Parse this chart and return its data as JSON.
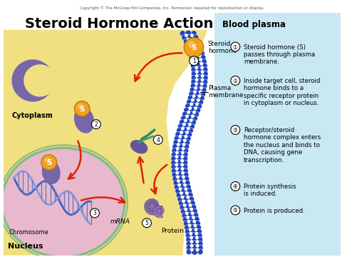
{
  "title": "Steroid Hormone Action",
  "copyright": "Copyright © The McGraw-Hill Companies, Inc. Permission required for reproduction or display.",
  "bg_color": "#FFFFFF",
  "cytoplasm_color": "#F0E080",
  "nucleus_color": "#E8B8CC",
  "blood_plasma_color": "#C8E8F4",
  "nucleus_border_color": "#88BB88",
  "membrane_blue": "#2244BB",
  "receptor_color": "#7766AA",
  "steroid_orange": "#F0A020",
  "steroid_label": "S",
  "arrow_color": "#DD2200",
  "steps": [
    "Steroid hormone (S)\npasses through plasma\nmembrane.",
    "Inside target cell, steroid\nhormone binds to a\nspecific receptor protein\nin cytoplasm or nucleus.",
    "Receptor/steroid\nhormone complex enters\nthe nucleus and binds to\nDNA, causing gene\ntranscription.",
    "Protein synthesis\nis induced.",
    "Protein is produced."
  ],
  "step_numbers": [
    "①",
    "②",
    "③",
    "④",
    "⑤"
  ],
  "labels": {
    "blood_plasma": "Blood plasma",
    "cytoplasm": "Cytoplasm",
    "nucleus": "Nucleus",
    "chromosome": "Chromosome",
    "mrna": "mRNA",
    "protein": "Protein",
    "steroid_hormone": "Steroid\nhormone",
    "plasma_membrane": "Plasma\nmembrane"
  }
}
